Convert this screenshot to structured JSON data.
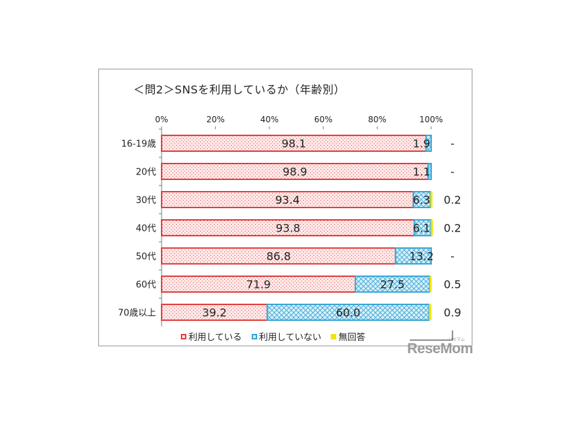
{
  "chart_data": {
    "type": "bar",
    "orientation": "horizontal",
    "stacked": true,
    "title": "＜問2＞SNSを利用しているか（年齢別）",
    "categories": [
      "16-19歳",
      "20代",
      "30代",
      "40代",
      "50代",
      "60代",
      "70歳以上"
    ],
    "series": [
      {
        "name": "利用している",
        "values": [
          98.1,
          98.9,
          93.4,
          93.8,
          86.8,
          71.9,
          39.2
        ],
        "labels": [
          "98.1",
          "98.9",
          "93.4",
          "93.8",
          "86.8",
          "71.9",
          "39.2"
        ],
        "color": "#e0403f",
        "fill": "#fbe1e1"
      },
      {
        "name": "利用していない",
        "values": [
          1.9,
          1.1,
          6.3,
          6.1,
          13.2,
          27.5,
          60.0
        ],
        "labels": [
          "1.9",
          "1.1",
          "6.3",
          "6.1",
          "13.2",
          "27.5",
          "60.0"
        ],
        "color": "#3aa6d6",
        "fill": "#d6eff8"
      },
      {
        "name": "無回答",
        "values": [
          0,
          0,
          0.2,
          0.2,
          0,
          0.5,
          0.9
        ],
        "labels": [
          "-",
          "-",
          "0.2",
          "0.2",
          "-",
          "0.5",
          "0.9"
        ],
        "color": "#f2e600",
        "fill": "#f2e600"
      }
    ],
    "xlim": [
      0,
      100
    ],
    "x_ticks": [
      "0%",
      "20%",
      "40%",
      "60%",
      "80%",
      "100%"
    ],
    "legend_position": "bottom",
    "grid": false
  },
  "watermark": {
    "logo": "ReseMom",
    "ruby": "リセマム"
  }
}
